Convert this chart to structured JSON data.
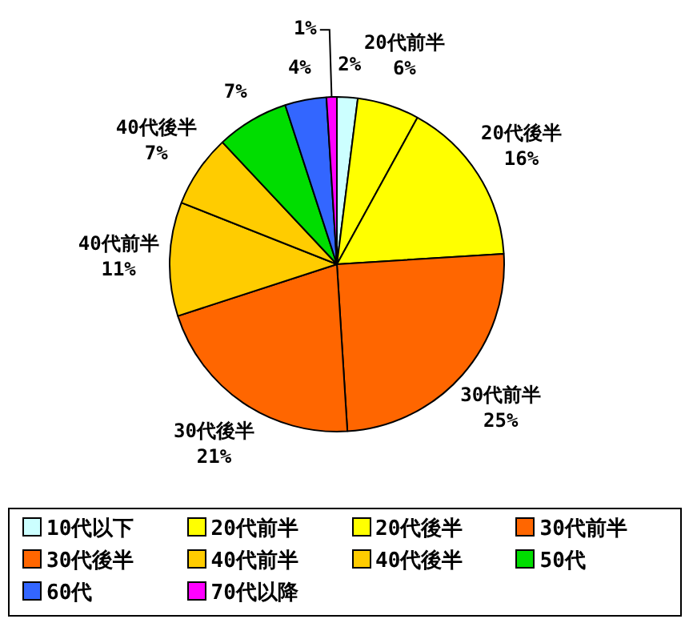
{
  "chart_data": {
    "type": "pie",
    "categories": [
      "10代以下",
      "20代前半",
      "20代後半",
      "30代前半",
      "30代後半",
      "40代前半",
      "40代後半",
      "50代",
      "60代",
      "70代以降"
    ],
    "values": [
      2,
      6,
      16,
      25,
      21,
      11,
      7,
      7,
      4,
      1
    ],
    "colors": [
      "#ccffff",
      "#ffff00",
      "#ffff00",
      "#ff6600",
      "#ff6600",
      "#ffcc00",
      "#ffcc00",
      "#00dd00",
      "#3366ff",
      "#ff00ff"
    ],
    "value_labels": [
      "2%",
      "20代前半\n6%",
      "20代後半\n16%",
      "30代前半\n25%",
      "30代後半\n21%",
      "40代前半\n11%",
      "40代後半\n7%",
      "7%",
      "4%",
      "1%"
    ],
    "legend": "bottom"
  }
}
